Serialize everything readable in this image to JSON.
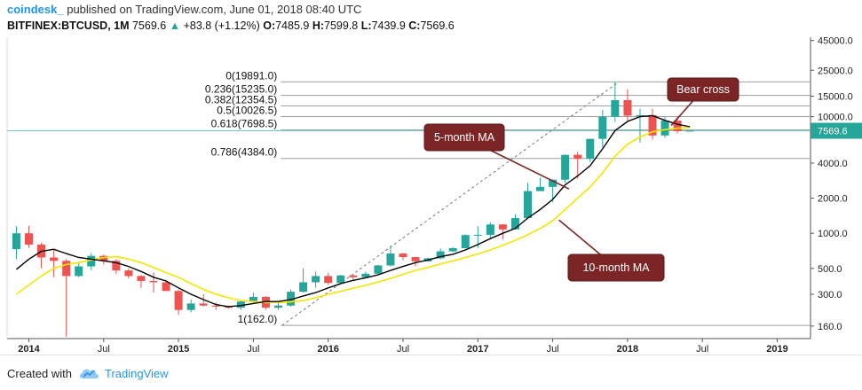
{
  "header": {
    "author": "coindesk_",
    "published": "published on TradingView.com, June 01, 2018 08:40 UTC",
    "symbol": "BITFINEX:BTCUSD, 1M",
    "last": "7569.6",
    "change": "+83.8 (+1.12%)",
    "o_label": "O:",
    "o_val": "7485.9",
    "h_label": "H:",
    "h_val": "7599.8",
    "l_label": "L:",
    "l_val": "7439.9",
    "c_label": "C:",
    "c_val": "7569.6"
  },
  "footer": {
    "created_with": "Created with",
    "brand": "TradingView"
  },
  "colors": {
    "up": "#26a69a",
    "down": "#ef5350",
    "ma5": "#000000",
    "ma10": "#f2e600",
    "fib": "#9e9e9e",
    "annotation_bg": "#7b2526",
    "price_tag": "#26a69a"
  },
  "annotations": {
    "ma5": "5-month MA",
    "ma10": "10-month MA",
    "bear": "Bear cross"
  },
  "chart_data": {
    "type": "candlestick",
    "scale": "log",
    "ylim": [
      125,
      48000
    ],
    "y_ticks": [
      "45000.0",
      "25000.0",
      "15000.0",
      "10000.0",
      "7569.6",
      "4000.0",
      "2000.0",
      "1000.0",
      "500.0",
      "300.0",
      "160.0"
    ],
    "x_ticks": [
      {
        "label": "2014",
        "i": 0
      },
      {
        "label": "Jul",
        "i": 6
      },
      {
        "label": "2015",
        "i": 12
      },
      {
        "label": "Jul",
        "i": 18
      },
      {
        "label": "2016",
        "i": 24
      },
      {
        "label": "Jul",
        "i": 30
      },
      {
        "label": "2017",
        "i": 36
      },
      {
        "label": "Jul",
        "i": 42
      },
      {
        "label": "2018",
        "i": 48
      },
      {
        "label": "Jul",
        "i": 54
      },
      {
        "label": "2019",
        "i": 60
      }
    ],
    "last_price": 7569.6,
    "fib_levels": [
      {
        "label": "0(19891.0)",
        "value": 19891
      },
      {
        "label": "0.236(15235.0)",
        "value": 15235
      },
      {
        "label": "0.382(12354.5)",
        "value": 12354.5
      },
      {
        "label": "0.5(10026.5)",
        "value": 10026.5
      },
      {
        "label": "0.618(7698.5)",
        "value": 7698.5
      },
      {
        "label": "0.786(4384.0)",
        "value": 4384
      },
      {
        "label": "1(162.0)",
        "value": 162
      }
    ],
    "ohlc": [
      [
        -1,
        730,
        1150,
        600,
        1000
      ],
      [
        0,
        1000,
        1160,
        750,
        800
      ],
      [
        1,
        800,
        830,
        500,
        620
      ],
      [
        2,
        620,
        720,
        420,
        580
      ],
      [
        3,
        580,
        600,
        130,
        430
      ],
      [
        4,
        430,
        560,
        420,
        520
      ],
      [
        5,
        520,
        680,
        480,
        640
      ],
      [
        6,
        640,
        660,
        540,
        580
      ],
      [
        7,
        580,
        600,
        450,
        480
      ],
      [
        8,
        480,
        500,
        410,
        430
      ],
      [
        9,
        430,
        440,
        340,
        390
      ],
      [
        10,
        390,
        460,
        310,
        380
      ],
      [
        11,
        380,
        400,
        350,
        320
      ],
      [
        12,
        320,
        330,
        200,
        220
      ],
      [
        13,
        220,
        270,
        210,
        250
      ],
      [
        14,
        250,
        300,
        235,
        240
      ],
      [
        15,
        240,
        255,
        220,
        235
      ],
      [
        16,
        235,
        240,
        225,
        230
      ],
      [
        17,
        230,
        265,
        220,
        260
      ],
      [
        18,
        260,
        310,
        250,
        285
      ],
      [
        19,
        285,
        290,
        220,
        230
      ],
      [
        20,
        230,
        260,
        220,
        240
      ],
      [
        21,
        240,
        330,
        235,
        315
      ],
      [
        22,
        315,
        500,
        310,
        380
      ],
      [
        23,
        380,
        470,
        340,
        430
      ],
      [
        24,
        430,
        460,
        360,
        375
      ],
      [
        25,
        375,
        440,
        365,
        435
      ],
      [
        26,
        435,
        445,
        400,
        420
      ],
      [
        27,
        420,
        470,
        410,
        450
      ],
      [
        28,
        450,
        540,
        440,
        530
      ],
      [
        29,
        530,
        780,
        520,
        670
      ],
      [
        30,
        670,
        680,
        590,
        625
      ],
      [
        31,
        625,
        630,
        520,
        575
      ],
      [
        32,
        575,
        620,
        570,
        610
      ],
      [
        33,
        610,
        740,
        600,
        700
      ],
      [
        34,
        700,
        760,
        690,
        745
      ],
      [
        35,
        745,
        980,
        740,
        965
      ],
      [
        36,
        965,
        1150,
        750,
        970
      ],
      [
        37,
        970,
        1240,
        900,
        1190
      ],
      [
        38,
        1190,
        1200,
        890,
        1080
      ],
      [
        39,
        1080,
        1450,
        1080,
        1350
      ],
      [
        40,
        1350,
        2700,
        1350,
        2300
      ],
      [
        41,
        2300,
        3000,
        2300,
        2500
      ],
      [
        42,
        2500,
        2900,
        1850,
        2880
      ],
      [
        43,
        2880,
        4750,
        2700,
        4700
      ],
      [
        44,
        4700,
        5000,
        2950,
        4350
      ],
      [
        45,
        4350,
        6450,
        4100,
        6450
      ],
      [
        46,
        6450,
        11400,
        5500,
        10000
      ],
      [
        47,
        10000,
        19891,
        9000,
        13850
      ],
      [
        48,
        13850,
        17200,
        9000,
        10200
      ],
      [
        49,
        10200,
        11700,
        6000,
        10300
      ],
      [
        50,
        10300,
        11700,
        6400,
        6900
      ],
      [
        51,
        6900,
        9900,
        6600,
        9250
      ],
      [
        52,
        9250,
        10000,
        7200,
        7500
      ],
      [
        53,
        7500,
        7600,
        7440,
        7570
      ]
    ],
    "ma5_label": "5-month MA",
    "ma10_label": "10-month MA",
    "ma5": [
      [
        -1,
        490
      ],
      [
        0,
        600
      ],
      [
        1,
        700
      ],
      [
        2,
        730
      ],
      [
        3,
        670
      ],
      [
        4,
        620
      ],
      [
        5,
        600
      ],
      [
        6,
        580
      ],
      [
        7,
        560
      ],
      [
        8,
        520
      ],
      [
        9,
        470
      ],
      [
        10,
        420
      ],
      [
        11,
        390
      ],
      [
        12,
        340
      ],
      [
        13,
        300
      ],
      [
        14,
        270
      ],
      [
        15,
        245
      ],
      [
        16,
        235
      ],
      [
        17,
        240
      ],
      [
        18,
        250
      ],
      [
        19,
        260
      ],
      [
        20,
        260
      ],
      [
        21,
        270
      ],
      [
        22,
        290
      ],
      [
        23,
        310
      ],
      [
        24,
        340
      ],
      [
        25,
        370
      ],
      [
        26,
        395
      ],
      [
        27,
        415
      ],
      [
        28,
        440
      ],
      [
        29,
        480
      ],
      [
        30,
        520
      ],
      [
        31,
        560
      ],
      [
        32,
        590
      ],
      [
        33,
        630
      ],
      [
        34,
        660
      ],
      [
        35,
        720
      ],
      [
        36,
        800
      ],
      [
        37,
        900
      ],
      [
        38,
        1000
      ],
      [
        39,
        1100
      ],
      [
        40,
        1350
      ],
      [
        41,
        1600
      ],
      [
        42,
        1950
      ],
      [
        43,
        2600
      ],
      [
        44,
        3100
      ],
      [
        45,
        3800
      ],
      [
        46,
        5300
      ],
      [
        47,
        7600
      ],
      [
        48,
        9100
      ],
      [
        49,
        10000
      ],
      [
        50,
        10200
      ],
      [
        51,
        9300
      ],
      [
        52,
        8600
      ],
      [
        53,
        8200
      ]
    ],
    "ma10": [
      [
        -1,
        300
      ],
      [
        0,
        360
      ],
      [
        1,
        430
      ],
      [
        2,
        500
      ],
      [
        3,
        540
      ],
      [
        4,
        560
      ],
      [
        5,
        590
      ],
      [
        6,
        620
      ],
      [
        7,
        630
      ],
      [
        8,
        600
      ],
      [
        9,
        560
      ],
      [
        10,
        510
      ],
      [
        11,
        460
      ],
      [
        12,
        420
      ],
      [
        13,
        370
      ],
      [
        14,
        330
      ],
      [
        15,
        300
      ],
      [
        16,
        280
      ],
      [
        17,
        265
      ],
      [
        18,
        260
      ],
      [
        19,
        255
      ],
      [
        20,
        255
      ],
      [
        21,
        258
      ],
      [
        22,
        265
      ],
      [
        23,
        280
      ],
      [
        24,
        300
      ],
      [
        25,
        318
      ],
      [
        26,
        338
      ],
      [
        27,
        358
      ],
      [
        28,
        382
      ],
      [
        29,
        410
      ],
      [
        30,
        445
      ],
      [
        31,
        480
      ],
      [
        32,
        510
      ],
      [
        33,
        545
      ],
      [
        34,
        580
      ],
      [
        35,
        620
      ],
      [
        36,
        665
      ],
      [
        37,
        720
      ],
      [
        38,
        790
      ],
      [
        39,
        870
      ],
      [
        40,
        970
      ],
      [
        41,
        1100
      ],
      [
        42,
        1280
      ],
      [
        43,
        1600
      ],
      [
        44,
        2000
      ],
      [
        45,
        2500
      ],
      [
        46,
        3300
      ],
      [
        47,
        4600
      ],
      [
        48,
        5800
      ],
      [
        49,
        6700
      ],
      [
        50,
        7400
      ],
      [
        51,
        7750
      ],
      [
        52,
        7950
      ],
      [
        53,
        8100
      ]
    ]
  }
}
